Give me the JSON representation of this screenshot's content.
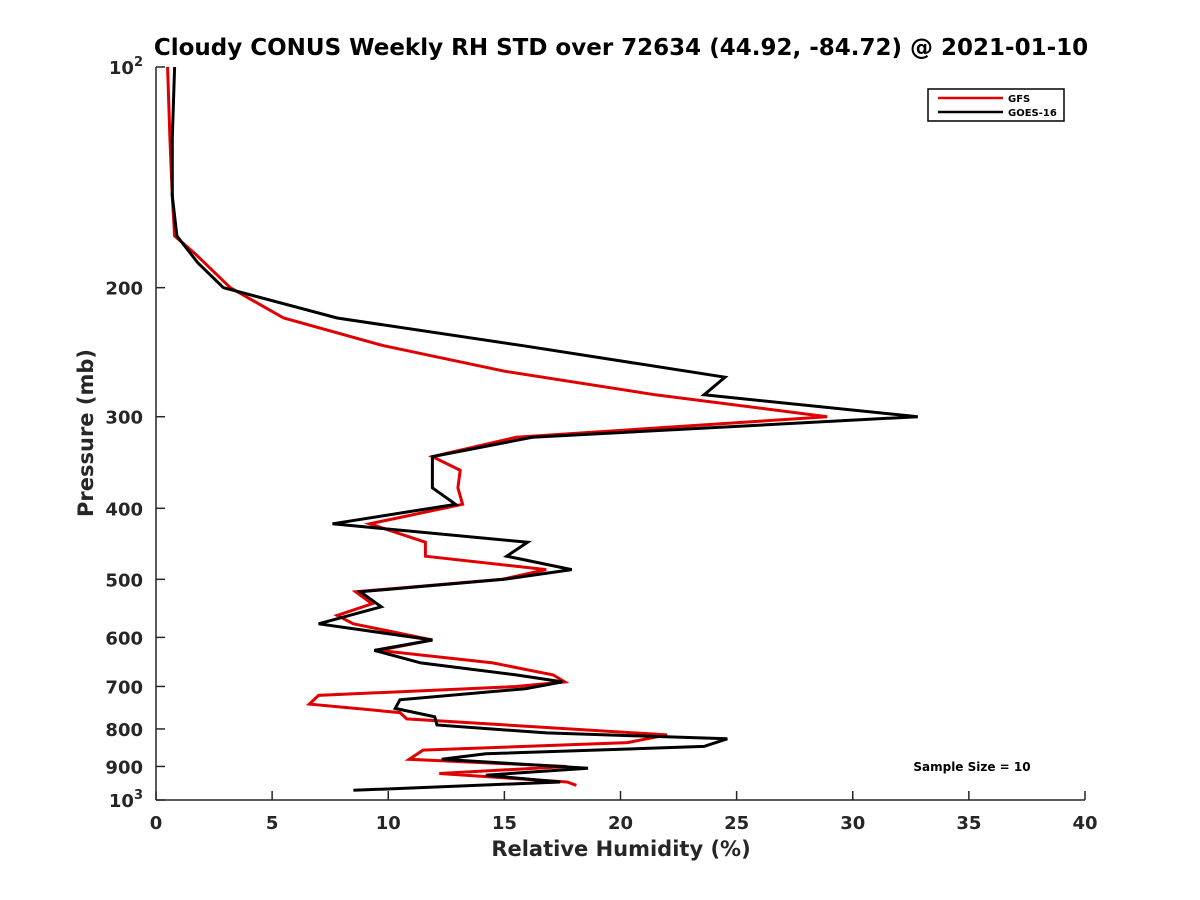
{
  "chart_data": {
    "type": "line",
    "title": "Cloudy CONUS Weekly RH STD over 72634 (44.92, -84.72) @ 2021-01-10",
    "xlabel": "Relative Humidity (%)",
    "ylabel": "Pressure (mb)",
    "xlim": [
      0,
      40
    ],
    "ylim": [
      100,
      1000
    ],
    "y_scale": "log",
    "y_reversed": true,
    "grid": false,
    "legend_position": "top-right",
    "x_ticks": [
      "0",
      "5",
      "10",
      "15",
      "20",
      "25",
      "30",
      "35",
      "40"
    ],
    "x_tick_values": [
      0,
      5,
      10,
      15,
      20,
      25,
      30,
      35,
      40
    ],
    "y_ticks": [
      {
        "value": 100,
        "base": "10",
        "exp": "2"
      },
      {
        "value": 200,
        "label": "200"
      },
      {
        "value": 300,
        "label": "300"
      },
      {
        "value": 400,
        "label": "400"
      },
      {
        "value": 500,
        "label": "500"
      },
      {
        "value": 600,
        "label": "600"
      },
      {
        "value": 700,
        "label": "700"
      },
      {
        "value": 800,
        "label": "800"
      },
      {
        "value": 900,
        "label": "900"
      },
      {
        "value": 1000,
        "base": "10",
        "exp": "3"
      }
    ],
    "annotation": "Sample Size = 10",
    "series": [
      {
        "name": "GFS",
        "color": "#e00000",
        "points": [
          [
            0.5,
            100
          ],
          [
            0.6,
            125
          ],
          [
            0.7,
            150
          ],
          [
            0.8,
            170
          ],
          [
            1.7,
            180
          ],
          [
            3.2,
            200
          ],
          [
            5.5,
            220
          ],
          [
            9.8,
            240
          ],
          [
            15.0,
            260
          ],
          [
            21.5,
            280
          ],
          [
            28.9,
            300
          ],
          [
            15.5,
            320
          ],
          [
            11.9,
            340
          ],
          [
            13.1,
            355
          ],
          [
            13.0,
            375
          ],
          [
            13.2,
            395
          ],
          [
            9.2,
            420
          ],
          [
            11.6,
            445
          ],
          [
            11.6,
            465
          ],
          [
            16.8,
            485
          ],
          [
            14.9,
            500
          ],
          [
            8.6,
            520
          ],
          [
            9.3,
            540
          ],
          [
            7.8,
            560
          ],
          [
            8.5,
            575
          ],
          [
            11.9,
            605
          ],
          [
            9.6,
            625
          ],
          [
            14.5,
            650
          ],
          [
            17.1,
            675
          ],
          [
            17.6,
            690
          ],
          [
            15.5,
            700
          ],
          [
            7.0,
            720
          ],
          [
            6.6,
            740
          ],
          [
            10.5,
            760
          ],
          [
            10.8,
            775
          ],
          [
            22.0,
            815
          ],
          [
            20.3,
            835
          ],
          [
            11.5,
            855
          ],
          [
            10.9,
            880
          ],
          [
            17.7,
            900
          ],
          [
            12.2,
            920
          ],
          [
            17.7,
            945
          ],
          [
            18.1,
            955
          ]
        ]
      },
      {
        "name": "GOES-16",
        "color": "#000000",
        "points": [
          [
            0.8,
            100
          ],
          [
            0.7,
            125
          ],
          [
            0.7,
            150
          ],
          [
            0.9,
            170
          ],
          [
            1.8,
            185
          ],
          [
            2.9,
            200
          ],
          [
            7.8,
            220
          ],
          [
            15.8,
            240
          ],
          [
            24.5,
            265
          ],
          [
            23.6,
            280
          ],
          [
            32.8,
            300
          ],
          [
            16.2,
            320
          ],
          [
            11.9,
            340
          ],
          [
            11.9,
            355
          ],
          [
            11.9,
            375
          ],
          [
            12.9,
            395
          ],
          [
            7.6,
            420
          ],
          [
            16.0,
            445
          ],
          [
            15.1,
            465
          ],
          [
            17.9,
            485
          ],
          [
            15.0,
            500
          ],
          [
            8.8,
            520
          ],
          [
            9.7,
            545
          ],
          [
            7.0,
            575
          ],
          [
            11.9,
            605
          ],
          [
            9.4,
            625
          ],
          [
            11.4,
            650
          ],
          [
            15.5,
            675
          ],
          [
            17.5,
            690
          ],
          [
            15.9,
            705
          ],
          [
            10.5,
            730
          ],
          [
            10.3,
            750
          ],
          [
            12.0,
            770
          ],
          [
            12.1,
            790
          ],
          [
            16.8,
            810
          ],
          [
            24.6,
            825
          ],
          [
            23.6,
            845
          ],
          [
            14.2,
            865
          ],
          [
            12.3,
            880
          ],
          [
            18.6,
            905
          ],
          [
            14.2,
            925
          ],
          [
            17.4,
            945
          ],
          [
            8.5,
            970
          ]
        ]
      }
    ]
  }
}
